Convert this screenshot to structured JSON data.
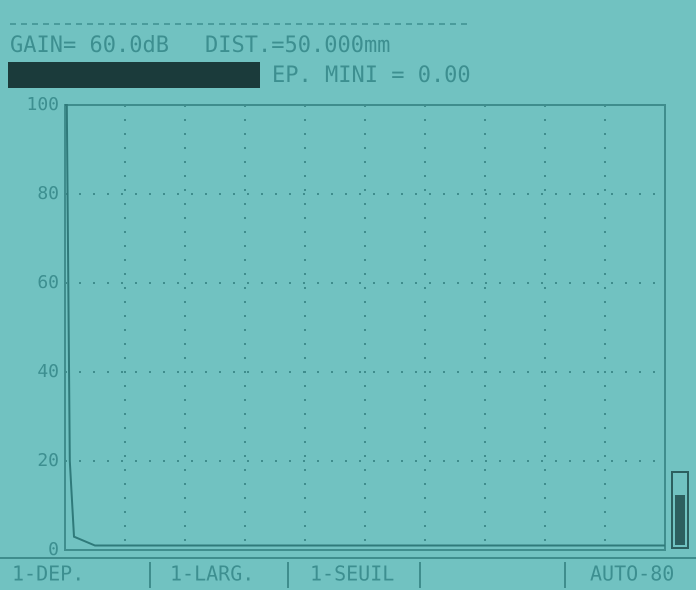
{
  "header": {
    "gain": "GAIN= 60.0dB",
    "dist": "DIST.=50.000mm",
    "ep_mini": "EP. MINI =  0.00"
  },
  "chart_data": {
    "type": "line",
    "ylim": [
      0,
      100
    ],
    "yticks": [
      0,
      20,
      40,
      60,
      80,
      100
    ],
    "xlim": [
      0,
      10
    ],
    "grid": true,
    "color": "#2f7a7a",
    "series": [
      {
        "x": [
          0,
          0.03,
          0.08,
          0.15,
          0.5,
          10
        ],
        "values": [
          100,
          100,
          20,
          3,
          1,
          1
        ]
      }
    ]
  },
  "menu": [
    "1-DEP.",
    "1-LARG.",
    "1-SEUIL",
    "AUTO-80"
  ]
}
